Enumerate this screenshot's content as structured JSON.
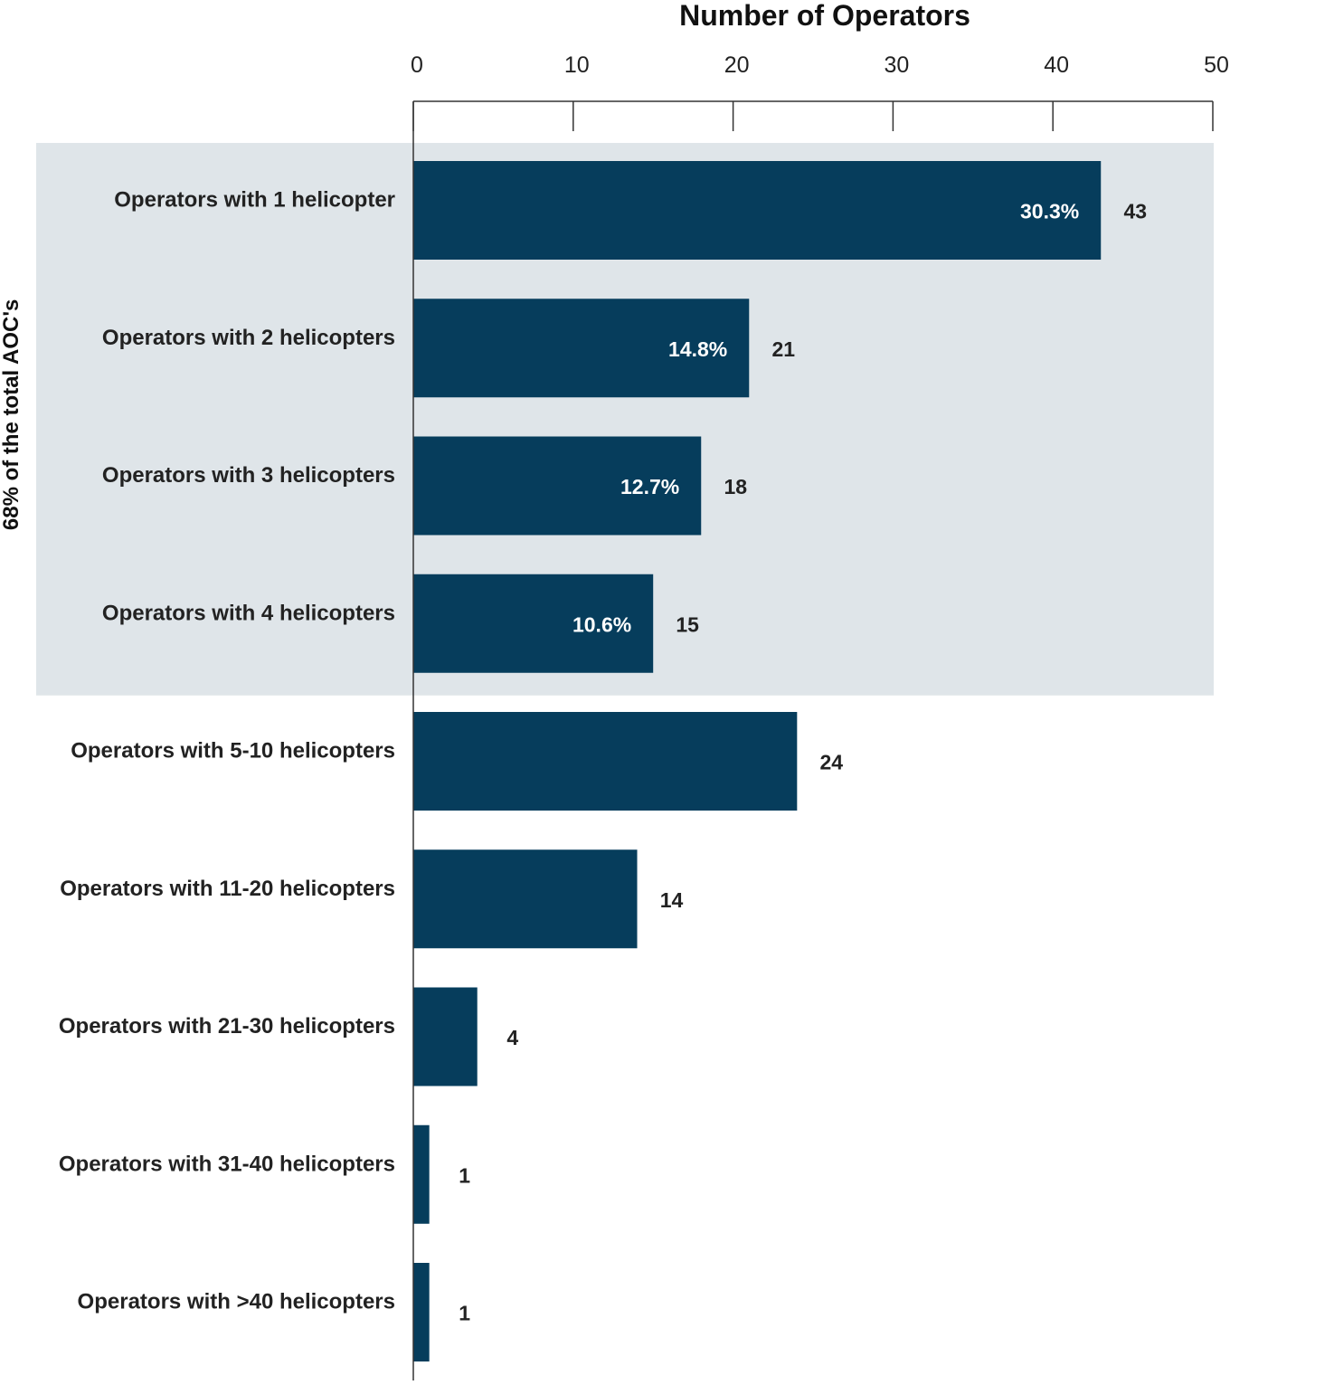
{
  "chart_data": {
    "type": "bar",
    "orientation": "horizontal",
    "x_axis_title": "Number of Operators",
    "xlim": [
      0,
      50
    ],
    "x_ticks": [
      0,
      10,
      20,
      30,
      40,
      50
    ],
    "x_axis_position": "top",
    "grid": false,
    "categories": [
      "Operators with 1 helicopter",
      "Operators with 2 helicopters",
      "Operators with 3 helicopters",
      "Operators with 4 helicopters",
      "Operators with 5-10 helicopters",
      "Operators with 11-20 helicopters",
      "Operators with 21-30 helicopters",
      "Operators with 31-40 helicopters",
      "Operators with >40 helicopters"
    ],
    "values": [
      43,
      21,
      18,
      15,
      24,
      14,
      4,
      1,
      1
    ],
    "percent_labels": [
      "30.3%",
      "14.8%",
      "12.7%",
      "10.6%",
      "",
      "",
      "",
      "",
      ""
    ],
    "highlight": {
      "label": "68% of the total AOC's",
      "categories_range": [
        0,
        3
      ],
      "color": "#dfe5e9"
    },
    "bar_color": "#063d5c"
  }
}
